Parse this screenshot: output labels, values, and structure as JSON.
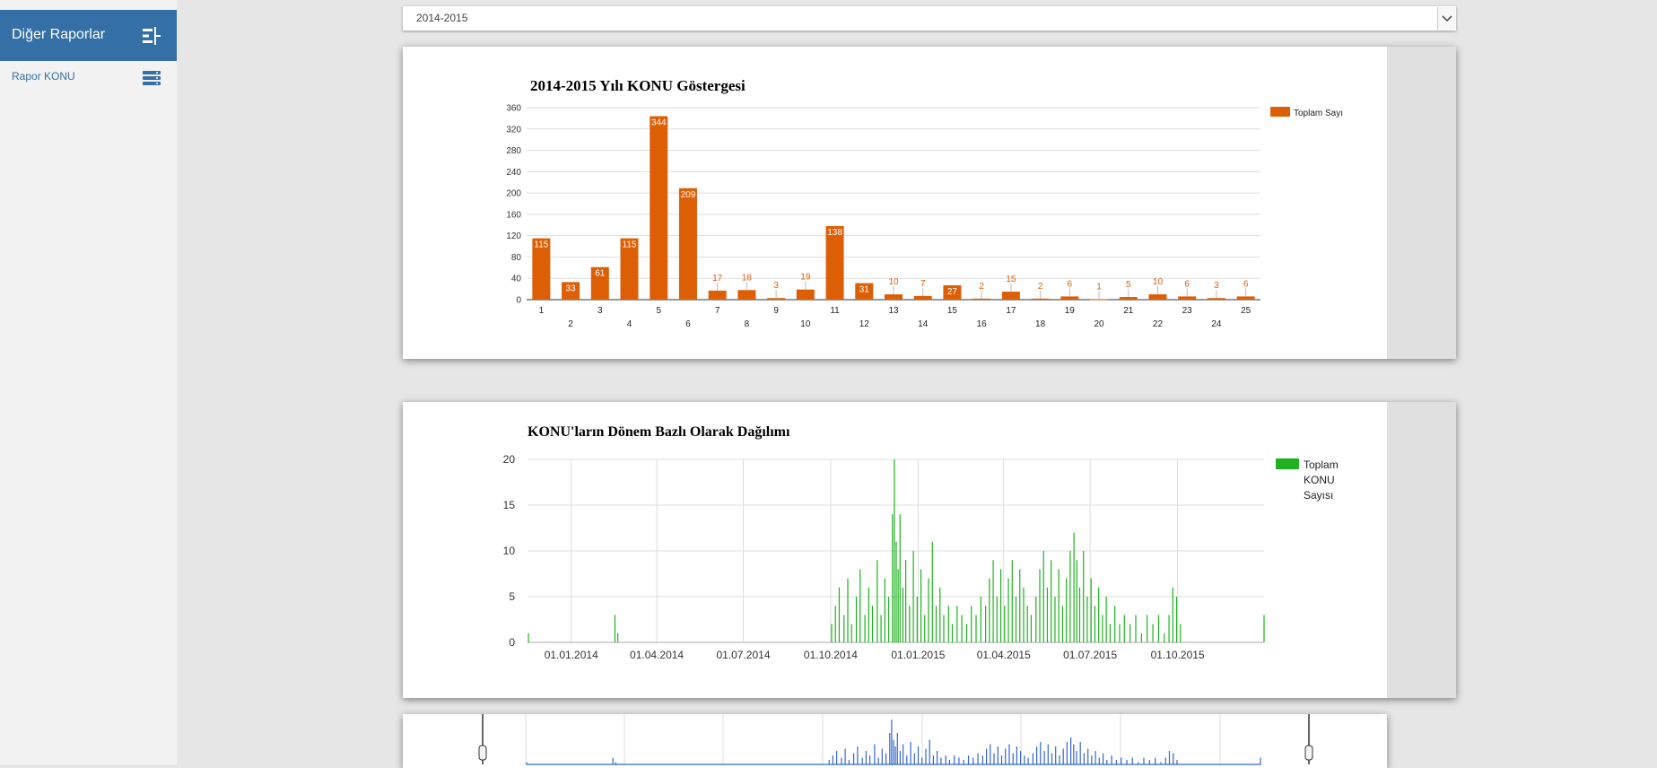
{
  "sidebar": {
    "title": "Diğer Raporlar",
    "collapse_icon": "sidebar-collapse-icon",
    "items": [
      {
        "label": "Rapor KONU",
        "icon": "server-list-icon"
      }
    ]
  },
  "period_select": {
    "value": "2014-2015",
    "arrow_icon": "chevron-down-icon"
  },
  "colors": {
    "bar": "#dc5f06",
    "line": "#1fb11f",
    "navigator_line": "#3366cc",
    "sidebar_header": "#346fa6"
  },
  "chart_data": [
    {
      "type": "bar",
      "title": "2014-2015 Yılı KONU Göstergesi",
      "categories": [
        "1",
        "2",
        "3",
        "4",
        "5",
        "6",
        "7",
        "8",
        "9",
        "10",
        "11",
        "12",
        "13",
        "14",
        "15",
        "16",
        "17",
        "18",
        "19",
        "20",
        "21",
        "22",
        "23",
        "24",
        "25"
      ],
      "series": [
        {
          "name": "Toplam Sayı",
          "values": [
            115,
            33,
            61,
            115,
            344,
            209,
            17,
            18,
            3,
            19,
            138,
            31,
            10,
            7,
            27,
            2,
            15,
            2,
            6,
            1,
            5,
            10,
            6,
            3,
            6
          ]
        }
      ],
      "ylim": [
        0,
        360
      ],
      "yticks": [
        "0",
        "40",
        "80",
        "120",
        "160",
        "200",
        "240",
        "280",
        "320",
        "360"
      ],
      "grid": true,
      "legend": "top-right"
    },
    {
      "type": "area",
      "title": "KONU'ların Dönem Bazlı Olarak Dağılımı",
      "x_tick_labels": [
        "01.01.2014",
        "01.04.2014",
        "01.07.2014",
        "01.10.2014",
        "01.01.2015",
        "01.04.2015",
        "01.07.2015",
        "01.10.2015"
      ],
      "x_range": [
        "2013-11-16",
        "2015-12-31"
      ],
      "ylim": [
        0,
        20
      ],
      "yticks": [
        "0",
        "5",
        "10",
        "15",
        "20"
      ],
      "series": [
        {
          "name": "Toplam KONU Sayısı",
          "points": [
            [
              "2013-11-17",
              1
            ],
            [
              "2014-02-16",
              3
            ],
            [
              "2014-02-19",
              1
            ],
            [
              "2014-10-02",
              2
            ],
            [
              "2014-10-06",
              4
            ],
            [
              "2014-10-10",
              6
            ],
            [
              "2014-10-15",
              3
            ],
            [
              "2014-10-19",
              7
            ],
            [
              "2014-10-23",
              2
            ],
            [
              "2014-10-28",
              5
            ],
            [
              "2014-11-01",
              8
            ],
            [
              "2014-11-06",
              3
            ],
            [
              "2014-11-10",
              6
            ],
            [
              "2014-11-14",
              4
            ],
            [
              "2014-11-19",
              9
            ],
            [
              "2014-11-23",
              3
            ],
            [
              "2014-11-27",
              7
            ],
            [
              "2014-12-01",
              5
            ],
            [
              "2014-12-05",
              14
            ],
            [
              "2014-12-07",
              20
            ],
            [
              "2014-12-09",
              11
            ],
            [
              "2014-12-11",
              8
            ],
            [
              "2014-12-13",
              14
            ],
            [
              "2014-12-16",
              6
            ],
            [
              "2014-12-19",
              9
            ],
            [
              "2014-12-23",
              4
            ],
            [
              "2014-12-27",
              10
            ],
            [
              "2014-12-31",
              5
            ],
            [
              "2015-01-04",
              8
            ],
            [
              "2015-01-08",
              3
            ],
            [
              "2015-01-12",
              7
            ],
            [
              "2015-01-16",
              11
            ],
            [
              "2015-01-20",
              4
            ],
            [
              "2015-01-24",
              6
            ],
            [
              "2015-01-28",
              3
            ],
            [
              "2015-02-02",
              4
            ],
            [
              "2015-02-06",
              2
            ],
            [
              "2015-02-11",
              4
            ],
            [
              "2015-02-16",
              3
            ],
            [
              "2015-02-21",
              2
            ],
            [
              "2015-02-26",
              4
            ],
            [
              "2015-03-03",
              3
            ],
            [
              "2015-03-08",
              5
            ],
            [
              "2015-03-13",
              4
            ],
            [
              "2015-03-17",
              7
            ],
            [
              "2015-03-21",
              9
            ],
            [
              "2015-03-25",
              5
            ],
            [
              "2015-03-29",
              8
            ],
            [
              "2015-04-02",
              4
            ],
            [
              "2015-04-06",
              7
            ],
            [
              "2015-04-10",
              9
            ],
            [
              "2015-04-14",
              5
            ],
            [
              "2015-04-18",
              8
            ],
            [
              "2015-04-22",
              6
            ],
            [
              "2015-04-26",
              4
            ],
            [
              "2015-04-30",
              3
            ],
            [
              "2015-05-05",
              5
            ],
            [
              "2015-05-09",
              8
            ],
            [
              "2015-05-13",
              10
            ],
            [
              "2015-05-17",
              6
            ],
            [
              "2015-05-21",
              9
            ],
            [
              "2015-05-25",
              5
            ],
            [
              "2015-05-29",
              8
            ],
            [
              "2015-06-02",
              4
            ],
            [
              "2015-06-06",
              7
            ],
            [
              "2015-06-10",
              10
            ],
            [
              "2015-06-14",
              12
            ],
            [
              "2015-06-17",
              9
            ],
            [
              "2015-06-20",
              6
            ],
            [
              "2015-06-24",
              10
            ],
            [
              "2015-06-28",
              5
            ],
            [
              "2015-07-02",
              7
            ],
            [
              "2015-07-06",
              4
            ],
            [
              "2015-07-10",
              6
            ],
            [
              "2015-07-14",
              3
            ],
            [
              "2015-07-18",
              5
            ],
            [
              "2015-07-22",
              2
            ],
            [
              "2015-07-27",
              4
            ],
            [
              "2015-08-01",
              2
            ],
            [
              "2015-08-06",
              3
            ],
            [
              "2015-08-12",
              2
            ],
            [
              "2015-08-18",
              3
            ],
            [
              "2015-08-24",
              1
            ],
            [
              "2015-08-30",
              3
            ],
            [
              "2015-09-05",
              2
            ],
            [
              "2015-09-11",
              3
            ],
            [
              "2015-09-17",
              1
            ],
            [
              "2015-09-22",
              3
            ],
            [
              "2015-09-26",
              6
            ],
            [
              "2015-09-30",
              5
            ],
            [
              "2015-10-04",
              2
            ],
            [
              "2015-12-31",
              3
            ]
          ]
        }
      ],
      "grid": true,
      "legend": "right"
    }
  ]
}
